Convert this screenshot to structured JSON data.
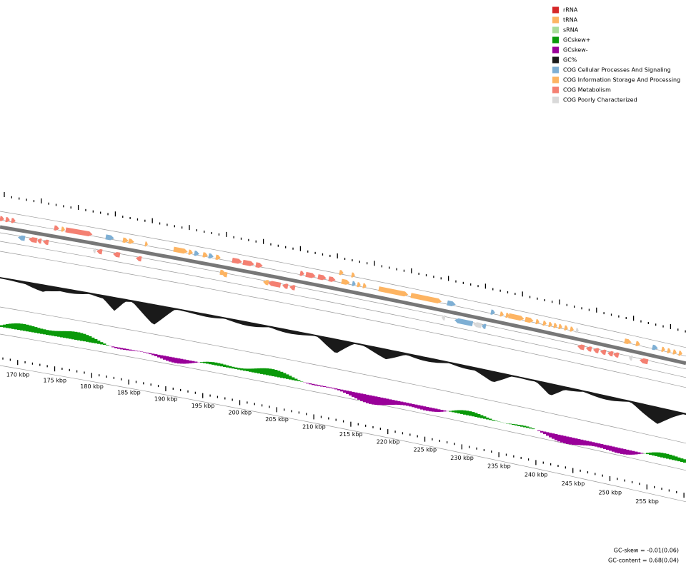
{
  "legend": [
    {
      "label": "rRNA",
      "color": "#d62728"
    },
    {
      "label": "tRNA",
      "color": "#fdb462"
    },
    {
      "label": "sRNA",
      "color": "#a8dc9a"
    },
    {
      "label": "GCskew+",
      "color": "#0a990a"
    },
    {
      "label": "GCskew-",
      "color": "#990099"
    },
    {
      "label": "GC%",
      "color": "#1a1a1a"
    },
    {
      "label": "COG Cellular Processes And Signaling",
      "color": "#7eafd4"
    },
    {
      "label": "COG Information Storage And Processing",
      "color": "#fdb462"
    },
    {
      "label": "COG Metabolism",
      "color": "#f48072"
    },
    {
      "label": "COG Poorly Characterized",
      "color": "#d9d9d9"
    }
  ],
  "ruler_labels": [
    "170 kbp",
    "175 kbp",
    "180 kbp",
    "185 kbp",
    "190 kbp",
    "195 kbp",
    "200 kbp",
    "205 kbp",
    "210 kbp",
    "215 kbp",
    "220 kbp",
    "225 kbp",
    "230 kbp",
    "235 kbp",
    "240 kbp",
    "245 kbp",
    "250 kbp",
    "255 kbp"
  ],
  "footer": {
    "gc_skew": "GC-skew = -0.01(0.06)",
    "gc_content": "GC-content = 0.68(0.04)"
  }
}
